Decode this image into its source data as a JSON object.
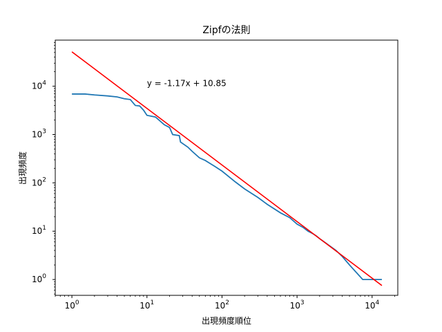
{
  "chart_data": {
    "type": "line",
    "title": "Zipfの法則",
    "xlabel": "出現頻度順位",
    "ylabel": "出現頻度",
    "xscale": "log",
    "yscale": "log",
    "xlim": [
      0.6,
      22000
    ],
    "ylim": [
      0.47,
      90000
    ],
    "x_ticks": [
      {
        "value": 1,
        "base": "10",
        "exp": "0"
      },
      {
        "value": 10,
        "base": "10",
        "exp": "1"
      },
      {
        "value": 100,
        "base": "10",
        "exp": "2"
      },
      {
        "value": 1000,
        "base": "10",
        "exp": "3"
      },
      {
        "value": 10000,
        "base": "10",
        "exp": "4"
      }
    ],
    "y_ticks": [
      {
        "value": 1,
        "base": "10",
        "exp": "0"
      },
      {
        "value": 10,
        "base": "10",
        "exp": "1"
      },
      {
        "value": 100,
        "base": "10",
        "exp": "2"
      },
      {
        "value": 1000,
        "base": "10",
        "exp": "3"
      },
      {
        "value": 10000,
        "base": "10",
        "exp": "4"
      }
    ],
    "grid": false,
    "annotation": {
      "text": "y = -1.17x + 10.85",
      "x": 10,
      "y": 10000
    },
    "series": [
      {
        "color": "#1f77b4",
        "points": [
          [
            1,
            6900
          ],
          [
            1.5,
            6900
          ],
          [
            2,
            6600
          ],
          [
            3,
            6300
          ],
          [
            4,
            6000
          ],
          [
            5,
            5500
          ],
          [
            6,
            5300
          ],
          [
            7,
            4000
          ],
          [
            8,
            3900
          ],
          [
            9,
            3200
          ],
          [
            10,
            2500
          ],
          [
            13,
            2300
          ],
          [
            15,
            1900
          ],
          [
            17,
            1600
          ],
          [
            20,
            1400
          ],
          [
            22,
            1000
          ],
          [
            27,
            950
          ],
          [
            28,
            700
          ],
          [
            35,
            550
          ],
          [
            40,
            450
          ],
          [
            50,
            330
          ],
          [
            60,
            290
          ],
          [
            70,
            250
          ],
          [
            80,
            220
          ],
          [
            100,
            175
          ],
          [
            150,
            105
          ],
          [
            200,
            75
          ],
          [
            300,
            50
          ],
          [
            400,
            36
          ],
          [
            600,
            24
          ],
          [
            800,
            19
          ],
          [
            1000,
            14
          ],
          [
            1200,
            12
          ],
          [
            1400,
            10
          ],
          [
            1600,
            9
          ],
          [
            1800,
            8
          ],
          [
            2000,
            7
          ],
          [
            2300,
            6
          ],
          [
            2700,
            5
          ],
          [
            3300,
            4
          ],
          [
            4000,
            3
          ],
          [
            5000,
            2
          ],
          [
            7500,
            1
          ],
          [
            13500,
            1
          ]
        ]
      },
      {
        "color": "#ff0000",
        "points": [
          [
            1,
            51500
          ],
          [
            13500,
            0.75
          ]
        ]
      }
    ]
  }
}
